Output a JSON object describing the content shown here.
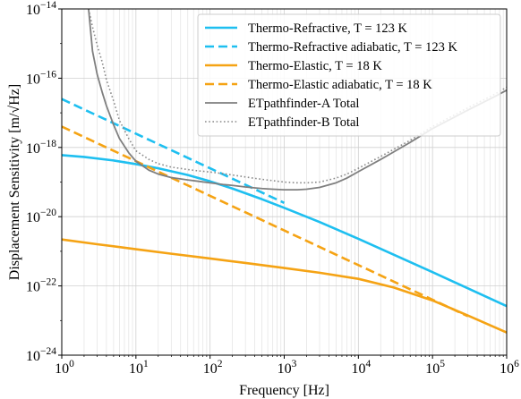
{
  "chart_data": {
    "type": "line",
    "title": "",
    "xlabel": "Frequency [Hz]",
    "ylabel": "Displacement Sensitivity [m/√Hz]",
    "xscale": "log",
    "yscale": "log",
    "xlim": [
      1,
      1000000
    ],
    "ylim": [
      1e-24,
      1e-14
    ],
    "grid": "on (major and minor)",
    "legend_position": "top-right",
    "x_tick_labels": [
      {
        "base": "10",
        "exp": "0"
      },
      {
        "base": "10",
        "exp": "1"
      },
      {
        "base": "10",
        "exp": "2"
      },
      {
        "base": "10",
        "exp": "3"
      },
      {
        "base": "10",
        "exp": "4"
      },
      {
        "base": "10",
        "exp": "5"
      },
      {
        "base": "10",
        "exp": "6"
      }
    ],
    "y_tick_labels": [
      {
        "base": "10",
        "exp": "−24"
      },
      {
        "base": "10",
        "exp": "−22"
      },
      {
        "base": "10",
        "exp": "−20"
      },
      {
        "base": "10",
        "exp": "−18"
      },
      {
        "base": "10",
        "exp": "−16"
      },
      {
        "base": "10",
        "exp": "−14"
      }
    ],
    "series": [
      {
        "name": "Thermo-Refractive, T = 123 K",
        "color": "#1ebff0",
        "style": "solid",
        "x": [
          1,
          2,
          5,
          10,
          20,
          50,
          100,
          200,
          500,
          1000,
          3000,
          10000,
          30000,
          100000,
          300000,
          1000000
        ],
        "y": [
          6e-19,
          5.3e-19,
          4.2e-19,
          3.3e-19,
          2.5e-19,
          1.6e-19,
          1.05e-19,
          6.5e-20,
          3.2e-20,
          1.8e-20,
          7e-21,
          2.3e-21,
          8e-22,
          2.5e-22,
          8.5e-23,
          2.6e-23
        ]
      },
      {
        "name": "Thermo-Refractive adiabatic, T = 123 K",
        "color": "#1ebff0",
        "style": "dashed",
        "x": [
          1,
          10,
          100,
          1000
        ],
        "y": [
          2.5e-17,
          2.5e-18,
          2.5e-19,
          2.5e-20
        ]
      },
      {
        "name": "Thermo-Elastic, T = 18 K",
        "color": "#f5a314",
        "style": "solid",
        "x": [
          1,
          3,
          10,
          30,
          100,
          300,
          1000,
          3000,
          10000,
          30000,
          100000,
          300000,
          1000000
        ],
        "y": [
          2.2e-21,
          1.6e-21,
          1.15e-21,
          8.5e-22,
          6.2e-22,
          4.6e-22,
          3.3e-22,
          2.4e-22,
          1.6e-22,
          9e-23,
          3.8e-23,
          1.4e-23,
          4.5e-24
        ]
      },
      {
        "name": "Thermo-Elastic adiabatic, T = 18 K",
        "color": "#f5a314",
        "style": "dashed",
        "x": [
          1,
          10,
          100,
          1000,
          10000,
          100000,
          300000
        ],
        "y": [
          4e-18,
          4e-19,
          4e-20,
          4e-21,
          4e-22,
          4e-23,
          1.33e-23
        ]
      },
      {
        "name": "ETpathfinder-A Total",
        "color": "#7f7f7f",
        "style": "solid",
        "x": [
          2.3,
          2.6,
          3,
          3.5,
          4,
          5,
          6,
          8,
          10,
          15,
          20,
          30,
          50,
          70,
          100,
          150,
          200,
          300,
          500,
          700,
          1000,
          1500,
          2000,
          3000,
          5000,
          7000,
          10000,
          20000,
          50000,
          100000,
          300000,
          700000,
          1000000
        ],
        "y": [
          1e-14,
          6e-16,
          1.3e-16,
          4e-17,
          1.6e-17,
          4.5e-18,
          1.8e-18,
          7e-19,
          4e-19,
          2.2e-19,
          1.7e-19,
          1.35e-19,
          1.15e-19,
          1.05e-19,
          9.5e-20,
          8.5e-20,
          8e-20,
          7.2e-20,
          6.5e-20,
          6.2e-20,
          6e-20,
          6e-20,
          6.2e-20,
          7e-20,
          9.5e-20,
          1.3e-19,
          2e-19,
          4.5e-19,
          1.4e-18,
          3.5e-18,
          1.2e-17,
          3e-17,
          4.5e-17
        ]
      },
      {
        "name": "ETpathfinder-B Total",
        "color": "#8a8a8a",
        "style": "dotted",
        "x": [
          2.3,
          2.6,
          3,
          3.5,
          4,
          5,
          6,
          8,
          10,
          15,
          20,
          30,
          50,
          70,
          80,
          100,
          150,
          200,
          300,
          500,
          700,
          1000,
          1500,
          2000,
          3000,
          5000,
          7000,
          10000,
          20000,
          50000,
          100000,
          300000,
          700000,
          1000000
        ],
        "y": [
          1e-14,
          3e-15,
          9e-16,
          3e-16,
          9e-17,
          2.2e-17,
          6e-18,
          1.8e-18,
          8e-19,
          4.5e-19,
          3.4e-19,
          2.7e-19,
          2.3e-19,
          2.1e-19,
          2.05e-19,
          1.95e-19,
          1.75e-19,
          1.6e-19,
          1.4e-19,
          1.2e-19,
          1.1e-19,
          1e-19,
          9.5e-20,
          9.5e-20,
          1e-19,
          1.3e-19,
          1.7e-19,
          2.5e-19,
          5.5e-19,
          1.6e-18,
          4e-18,
          1.4e-17,
          3.5e-17,
          5.5e-17
        ]
      }
    ]
  }
}
